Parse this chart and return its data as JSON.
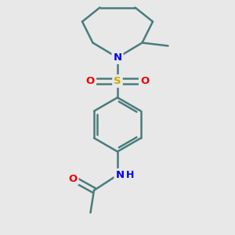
{
  "background_color": "#e8e8e8",
  "bond_color": "#4a7c7c",
  "bond_width": 1.8,
  "atom_colors": {
    "N": "#0000ee",
    "O": "#ee0000",
    "S": "#ccaa00",
    "C": "#4a7c7c"
  },
  "figsize": [
    3.0,
    3.0
  ],
  "dpi": 100,
  "xlim": [
    0,
    10
  ],
  "ylim": [
    0,
    10
  ]
}
